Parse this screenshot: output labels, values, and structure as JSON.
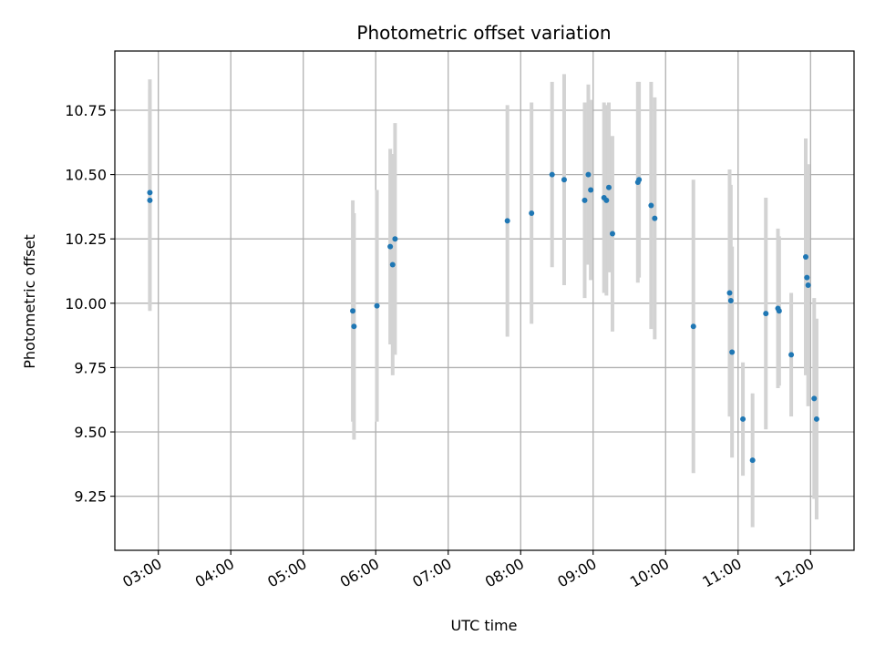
{
  "chart_data": {
    "type": "scatter",
    "title": "Photometric offset variation",
    "xlabel": "UTC time",
    "ylabel": "Photometric offset",
    "x_ticks": [
      "03:00",
      "04:00",
      "05:00",
      "06:00",
      "07:00",
      "08:00",
      "09:00",
      "10:00",
      "11:00",
      "12:00"
    ],
    "y_ticks": [
      "9.25",
      "9.50",
      "9.75",
      "10.00",
      "10.25",
      "10.50",
      "10.75"
    ],
    "xlim": [
      "02:24",
      "12:36"
    ],
    "ylim": [
      9.04,
      10.98
    ],
    "grid": true,
    "colors": {
      "point": "#1f77b4",
      "errorbar": "#d3d3d3",
      "grid": "#b0b0b0"
    },
    "points": [
      {
        "x": "02:53",
        "y": 10.43,
        "err": 0.44
      },
      {
        "x": "02:53",
        "y": 10.4,
        "err": 0.43
      },
      {
        "x": "05:41",
        "y": 9.97,
        "err": 0.43
      },
      {
        "x": "05:42",
        "y": 9.91,
        "err": 0.44
      },
      {
        "x": "06:01",
        "y": 9.99,
        "err": 0.45
      },
      {
        "x": "06:12",
        "y": 10.22,
        "err": 0.38
      },
      {
        "x": "06:14",
        "y": 10.15,
        "err": 0.43
      },
      {
        "x": "06:16",
        "y": 10.25,
        "err": 0.45
      },
      {
        "x": "07:49",
        "y": 10.32,
        "err": 0.45
      },
      {
        "x": "08:09",
        "y": 10.35,
        "err": 0.43
      },
      {
        "x": "08:26",
        "y": 10.5,
        "err": 0.36
      },
      {
        "x": "08:36",
        "y": 10.48,
        "err": 0.41
      },
      {
        "x": "08:53",
        "y": 10.4,
        "err": 0.38
      },
      {
        "x": "08:56",
        "y": 10.5,
        "err": 0.35
      },
      {
        "x": "08:58",
        "y": 10.44,
        "err": 0.35
      },
      {
        "x": "09:09",
        "y": 10.41,
        "err": 0.37
      },
      {
        "x": "09:11",
        "y": 10.4,
        "err": 0.37
      },
      {
        "x": "09:13",
        "y": 10.45,
        "err": 0.33
      },
      {
        "x": "09:16",
        "y": 10.27,
        "err": 0.38
      },
      {
        "x": "09:37",
        "y": 10.47,
        "err": 0.39
      },
      {
        "x": "09:38",
        "y": 10.48,
        "err": 0.38
      },
      {
        "x": "09:48",
        "y": 10.38,
        "err": 0.48
      },
      {
        "x": "09:51",
        "y": 10.33,
        "err": 0.47
      },
      {
        "x": "10:23",
        "y": 9.91,
        "err": 0.57
      },
      {
        "x": "10:53",
        "y": 10.04,
        "err": 0.48
      },
      {
        "x": "10:54",
        "y": 10.01,
        "err": 0.45
      },
      {
        "x": "10:55",
        "y": 9.81,
        "err": 0.41
      },
      {
        "x": "11:04",
        "y": 9.55,
        "err": 0.22
      },
      {
        "x": "11:12",
        "y": 9.39,
        "err": 0.26
      },
      {
        "x": "11:23",
        "y": 9.96,
        "err": 0.45
      },
      {
        "x": "11:33",
        "y": 9.98,
        "err": 0.31
      },
      {
        "x": "11:34",
        "y": 9.97,
        "err": 0.29
      },
      {
        "x": "11:44",
        "y": 9.8,
        "err": 0.24
      },
      {
        "x": "11:56",
        "y": 10.18,
        "err": 0.46
      },
      {
        "x": "11:57",
        "y": 10.1,
        "err": 0.37
      },
      {
        "x": "11:58",
        "y": 10.07,
        "err": 0.47
      },
      {
        "x": "12:03",
        "y": 9.63,
        "err": 0.39
      },
      {
        "x": "12:05",
        "y": 9.55,
        "err": 0.39
      }
    ]
  }
}
